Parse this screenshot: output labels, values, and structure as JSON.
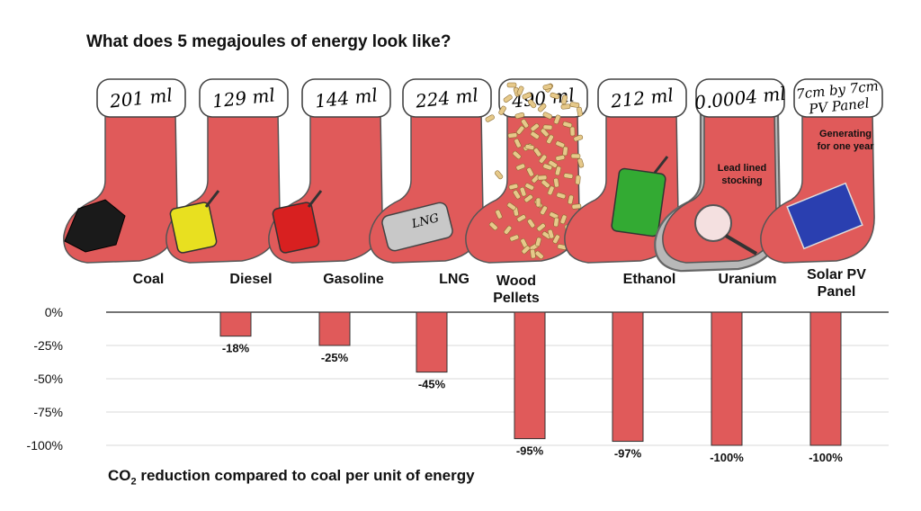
{
  "title": "What does 5 megajoules of energy look like?",
  "stockings": [
    {
      "category": "Coal",
      "amount": "201 ml",
      "icon": "coal-lump-icon"
    },
    {
      "category": "Diesel",
      "amount": "129 ml",
      "icon": "yellow-jerrycan-icon"
    },
    {
      "category": "Gasoline",
      "amount": "144 ml",
      "icon": "red-jerrycan-icon"
    },
    {
      "category": "LNG",
      "amount": "224 ml",
      "icon": "lng-tank-icon",
      "tank_label": "LNG"
    },
    {
      "category": "Wood Pellets",
      "amount": "490 ml",
      "icon": "wood-pellets-icon"
    },
    {
      "category": "Ethanol",
      "amount": "212 ml",
      "icon": "green-jerrycan-icon"
    },
    {
      "category": "Uranium",
      "amount": "0.0004 ml",
      "icon": "magnifying-glass-icon",
      "note": "Lead lined stocking"
    },
    {
      "category": "Solar PV Panel",
      "amount_lines": [
        "7cm by 7cm",
        "PV Panel"
      ],
      "icon": "solar-panel-icon",
      "note": "Generating for one year"
    }
  ],
  "colors": {
    "stocking": "#e05a5a",
    "bar": "#e05a5a",
    "cuff": "#ffffff",
    "lead": "#b8b8b8"
  },
  "chart_data": {
    "type": "bar",
    "categories": [
      "Coal",
      "Diesel",
      "Gasoline",
      "LNG",
      "Wood Pellets",
      "Ethanol",
      "Uranium",
      "Solar PV Panel"
    ],
    "values": [
      0,
      -18,
      -25,
      -45,
      -95,
      -97,
      -100,
      -100
    ],
    "data_labels": [
      "",
      "-18%",
      "-25%",
      "-45%",
      "-95%",
      "-97%",
      "-100%",
      "-100%"
    ],
    "ytick_labels": [
      "0%",
      "-25%",
      "-50%",
      "-75%",
      "-100%"
    ],
    "ytick_values": [
      0,
      -25,
      -50,
      -75,
      -100
    ],
    "ylim": [
      -100,
      0
    ],
    "grid": true,
    "xlabel_main": "CO",
    "xlabel_sub": "2",
    "xlabel_rest": " reduction compared to coal per unit of energy"
  }
}
